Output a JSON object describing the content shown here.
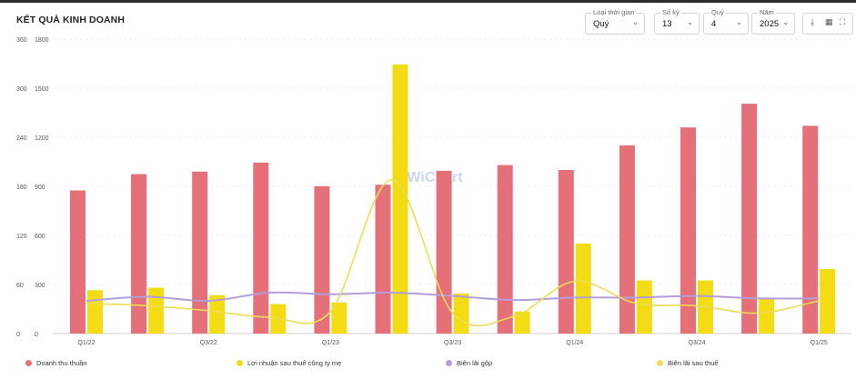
{
  "title": "KẾT QUẢ KINH DOANH",
  "controls": {
    "period_type": {
      "label": "Loại thời gian",
      "value": "Quý"
    },
    "count": {
      "label": "Số kỳ",
      "value": "13"
    },
    "quarter": {
      "label": "Quý",
      "value": "4"
    },
    "year": {
      "label": "Năm",
      "value": "2025"
    }
  },
  "icons": [
    "download-icon",
    "excel-icon",
    "expand-icon"
  ],
  "watermark": "WiChart",
  "colors": {
    "revenue": "#e5707a",
    "profit": "#f3dc13",
    "gross_margin": "#b39ddb",
    "net_margin": "#eddc55"
  },
  "chart_data": {
    "type": "bar",
    "categories": [
      "Q1/22",
      "Q2/22",
      "Q3/22",
      "Q4/22",
      "Q1/23",
      "Q2/23",
      "Q3/23",
      "Q4/23",
      "Q1/24",
      "Q2/24",
      "Q3/24",
      "Q4/24",
      "Q1/25"
    ],
    "x_tick_labels": [
      "Q1/22",
      "Q3/22",
      "Q1/23",
      "Q3/23",
      "Q1/24",
      "Q3/24",
      "Q1/25"
    ],
    "y_left": {
      "ticks": [
        0,
        300,
        600,
        900,
        1200,
        1500,
        1800
      ],
      "lim": [
        0,
        1800
      ]
    },
    "y_right": {
      "ticks": [
        0,
        60,
        120,
        180,
        240,
        300,
        360
      ],
      "lim": [
        0,
        360
      ]
    },
    "grid": true,
    "legend_position": "bottom",
    "series": [
      {
        "name": "Doanh thu thuần",
        "kind": "bar",
        "axis": "left",
        "values": [
          875,
          975,
          990,
          1045,
          900,
          910,
          995,
          1030,
          1000,
          1150,
          1260,
          1405,
          1270
        ]
      },
      {
        "name": "Lợi nhuận sau thuế công ty mẹ",
        "kind": "bar",
        "axis": "left",
        "values": [
          265,
          280,
          235,
          180,
          190,
          1645,
          245,
          135,
          550,
          325,
          325,
          220,
          395
        ]
      },
      {
        "name": "Biên lãi gộp",
        "kind": "line",
        "axis": "right",
        "values": [
          40,
          45,
          40,
          50,
          48,
          50,
          46,
          41,
          44,
          44,
          46,
          43,
          43
        ]
      },
      {
        "name": "Biên lãi sau thuế",
        "kind": "line",
        "axis": "right",
        "values": [
          37,
          34,
          28,
          20,
          27,
          188,
          25,
          21,
          64,
          37,
          34,
          25,
          40
        ]
      }
    ]
  }
}
